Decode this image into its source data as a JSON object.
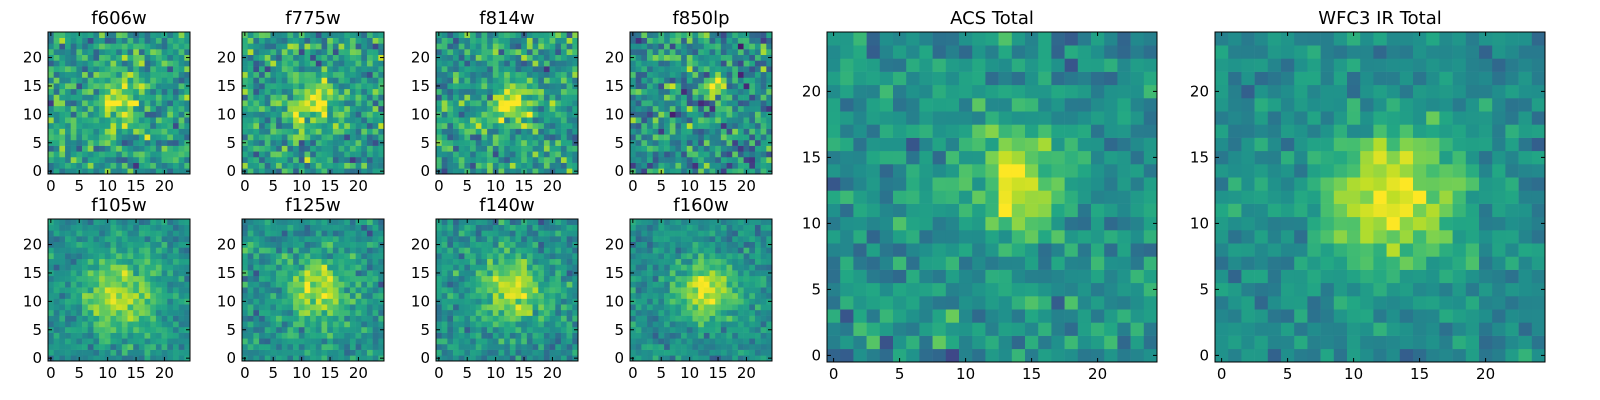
{
  "figure": {
    "description_free": true
  },
  "chart_data": [
    {
      "type": "heatmap",
      "title": "f606w",
      "colormap": "viridis",
      "grid_size": 25,
      "xlim": [
        0,
        24
      ],
      "ylim": [
        0,
        24
      ],
      "xticks": [
        0,
        5,
        10,
        15,
        20
      ],
      "yticks": [
        0,
        5,
        10,
        15,
        20
      ],
      "source_center": [
        12,
        13
      ],
      "source_sigma": 3.0,
      "source_amplitude": 0.35,
      "background_level": 0.55,
      "noise_level": 0.18,
      "seed": 11
    },
    {
      "type": "heatmap",
      "title": "f775w",
      "colormap": "viridis",
      "grid_size": 25,
      "xlim": [
        0,
        24
      ],
      "ylim": [
        0,
        24
      ],
      "xticks": [
        0,
        5,
        10,
        15,
        20
      ],
      "yticks": [
        0,
        5,
        10,
        15,
        20
      ],
      "source_center": [
        12,
        12
      ],
      "source_sigma": 3.0,
      "source_amplitude": 0.35,
      "background_level": 0.55,
      "noise_level": 0.18,
      "seed": 23
    },
    {
      "type": "heatmap",
      "title": "f814w",
      "colormap": "viridis",
      "grid_size": 25,
      "xlim": [
        0,
        24
      ],
      "ylim": [
        0,
        24
      ],
      "xticks": [
        0,
        5,
        10,
        15,
        20
      ],
      "yticks": [
        0,
        5,
        10,
        15,
        20
      ],
      "source_center": [
        13,
        12
      ],
      "source_sigma": 2.5,
      "source_amplitude": 0.4,
      "background_level": 0.55,
      "noise_level": 0.18,
      "seed": 37
    },
    {
      "type": "heatmap",
      "title": "f850lp",
      "colormap": "viridis",
      "grid_size": 25,
      "xlim": [
        0,
        24
      ],
      "ylim": [
        0,
        24
      ],
      "xticks": [
        0,
        5,
        10,
        15,
        20
      ],
      "yticks": [
        0,
        5,
        10,
        15,
        20
      ],
      "source_center": [
        15,
        15
      ],
      "source_sigma": 1.2,
      "source_amplitude": 0.45,
      "background_level": 0.5,
      "noise_level": 0.2,
      "seed": 41
    },
    {
      "type": "heatmap",
      "title": "f105w",
      "colormap": "viridis",
      "grid_size": 25,
      "xlim": [
        0,
        24
      ],
      "ylim": [
        0,
        24
      ],
      "xticks": [
        0,
        5,
        10,
        15,
        20
      ],
      "yticks": [
        0,
        5,
        10,
        15,
        20
      ],
      "source_center": [
        12,
        11
      ],
      "source_sigma": 4.5,
      "source_amplitude": 0.4,
      "background_level": 0.5,
      "noise_level": 0.1,
      "seed": 53
    },
    {
      "type": "heatmap",
      "title": "f125w",
      "colormap": "viridis",
      "grid_size": 25,
      "xlim": [
        0,
        24
      ],
      "ylim": [
        0,
        24
      ],
      "xticks": [
        0,
        5,
        10,
        15,
        20
      ],
      "yticks": [
        0,
        5,
        10,
        15,
        20
      ],
      "source_center": [
        13,
        12
      ],
      "source_sigma": 4.0,
      "source_amplitude": 0.4,
      "background_level": 0.5,
      "noise_level": 0.12,
      "seed": 61
    },
    {
      "type": "heatmap",
      "title": "f140w",
      "colormap": "viridis",
      "grid_size": 25,
      "xlim": [
        0,
        24
      ],
      "ylim": [
        0,
        24
      ],
      "xticks": [
        0,
        5,
        10,
        15,
        20
      ],
      "yticks": [
        0,
        5,
        10,
        15,
        20
      ],
      "source_center": [
        13,
        12
      ],
      "source_sigma": 4.0,
      "source_amplitude": 0.4,
      "background_level": 0.5,
      "noise_level": 0.12,
      "seed": 79
    },
    {
      "type": "heatmap",
      "title": "f160w",
      "colormap": "viridis",
      "grid_size": 25,
      "xlim": [
        0,
        24
      ],
      "ylim": [
        0,
        24
      ],
      "xticks": [
        0,
        5,
        10,
        15,
        20
      ],
      "yticks": [
        0,
        5,
        10,
        15,
        20
      ],
      "source_center": [
        13,
        12
      ],
      "source_sigma": 3.5,
      "source_amplitude": 0.45,
      "background_level": 0.5,
      "noise_level": 0.1,
      "seed": 83
    },
    {
      "type": "heatmap",
      "title": "ACS Total",
      "colormap": "viridis",
      "grid_size": 25,
      "xlim": [
        0,
        24
      ],
      "ylim": [
        0,
        24
      ],
      "xticks": [
        0,
        5,
        10,
        15,
        20
      ],
      "yticks": [
        0,
        5,
        10,
        15,
        20
      ],
      "source_center": [
        14,
        13
      ],
      "source_sigma": 2.5,
      "source_amplitude": 0.45,
      "background_level": 0.5,
      "noise_level": 0.12,
      "seed": 97
    },
    {
      "type": "heatmap",
      "title": "WFC3 IR Total",
      "colormap": "viridis",
      "grid_size": 25,
      "xlim": [
        0,
        24
      ],
      "ylim": [
        0,
        24
      ],
      "xticks": [
        0,
        5,
        10,
        15,
        20
      ],
      "yticks": [
        0,
        5,
        10,
        15,
        20
      ],
      "source_center": [
        13,
        12
      ],
      "source_sigma": 3.8,
      "source_amplitude": 0.5,
      "background_level": 0.48,
      "noise_level": 0.09,
      "seed": 101
    }
  ]
}
